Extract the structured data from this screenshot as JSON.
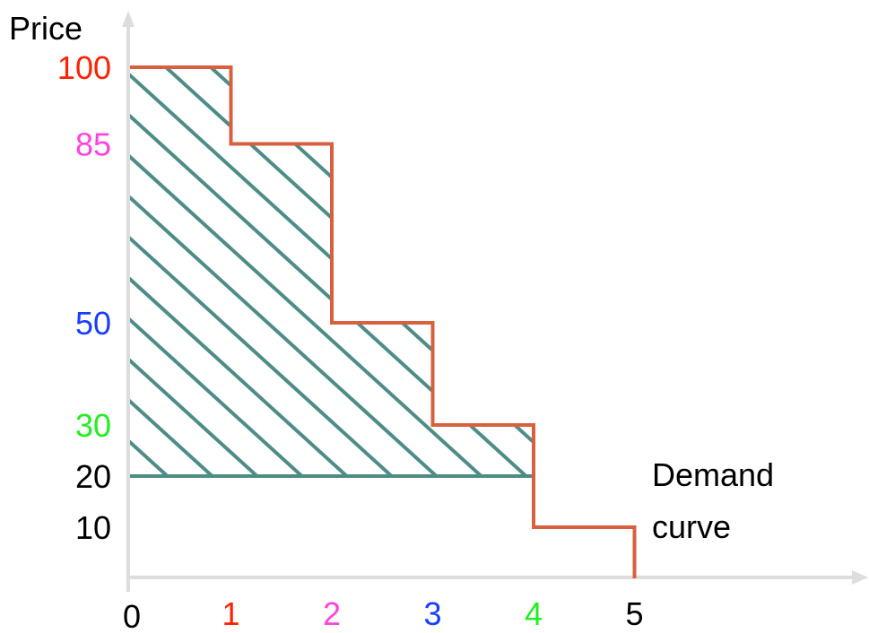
{
  "chart_data": {
    "type": "line",
    "ylabel": "Price",
    "xlabel": "",
    "x_ticks": [
      "0",
      "1",
      "2",
      "3",
      "4",
      "5"
    ],
    "y_ticks": [
      "100",
      "85",
      "50",
      "30",
      "20",
      "10"
    ],
    "series": [
      {
        "name": "Demand curve",
        "step": true,
        "points": [
          {
            "x": 0,
            "y": 100
          },
          {
            "x": 1,
            "y": 100
          },
          {
            "x": 1,
            "y": 85
          },
          {
            "x": 2,
            "y": 85
          },
          {
            "x": 2,
            "y": 50
          },
          {
            "x": 3,
            "y": 50
          },
          {
            "x": 3,
            "y": 30
          },
          {
            "x": 4,
            "y": 30
          },
          {
            "x": 4,
            "y": 10
          },
          {
            "x": 5,
            "y": 10
          },
          {
            "x": 5,
            "y": 0
          }
        ]
      }
    ],
    "shaded_region": {
      "description": "hatched area between demand curve and price 20 for quantities 0 to 4",
      "x_range": [
        0,
        4
      ],
      "y_floor": 20,
      "color": "#4e8c86"
    },
    "annotation_lines": [
      "Demand",
      "curve"
    ],
    "colors": {
      "curve": "#d9603f",
      "hatch": "#4e8c86",
      "axis": "#dddddd",
      "tick_1_100": "#ff2200",
      "tick_2_85": "#ff44dd",
      "tick_3_50": "#1a3cff",
      "tick_4_30": "#22ee22",
      "tick_default": "#000000"
    }
  }
}
